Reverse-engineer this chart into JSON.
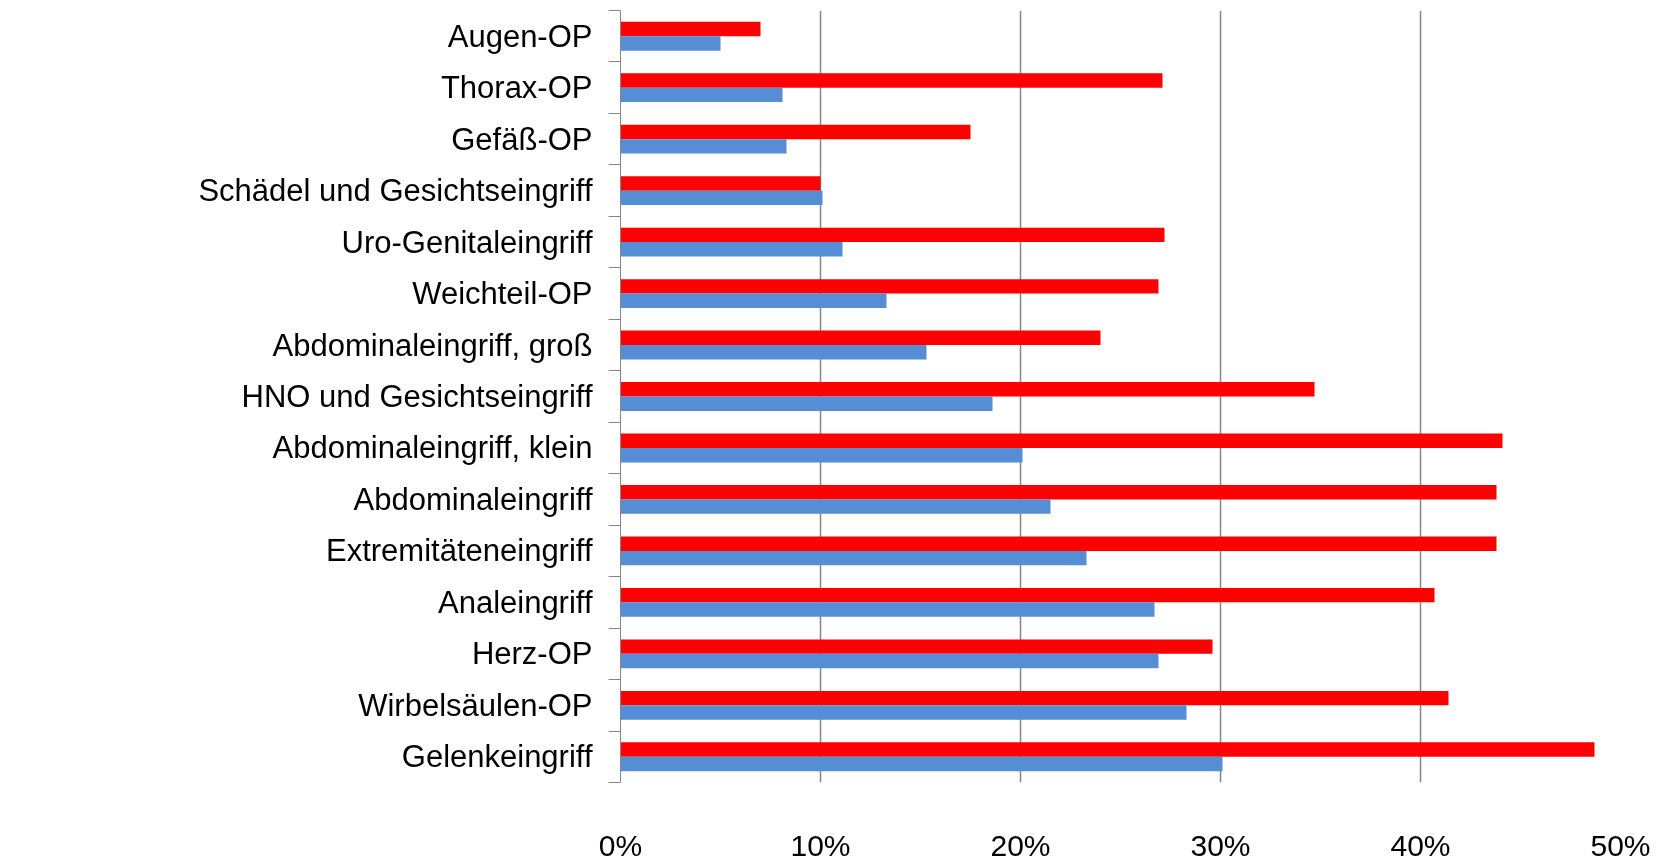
{
  "chart_data": {
    "type": "bar",
    "orientation": "horizontal",
    "categories": [
      "Augen-OP",
      "Thorax-OP",
      "Gefäß-OP",
      "Schädel und Gesichtseingriff",
      "Uro-Genitaleingriff",
      "Weichteil-OP",
      "Abdominaleingriff, groß",
      "HNO und Gesichtseingriff",
      "Abdominaleingriff, klein",
      "Abdominaleingriff",
      "Extremitäteneingriff",
      "Analeingriff",
      "Herz-OP",
      "Wirbelsäulen-OP",
      "Gelenkeingriff"
    ],
    "series": [
      {
        "color": "#ff0000",
        "values": [
          7.0,
          27.1,
          17.5,
          10.0,
          27.2,
          26.9,
          24.0,
          34.7,
          44.1,
          43.8,
          43.8,
          40.7,
          29.6,
          41.4,
          48.7
        ]
      },
      {
        "color": "#558ed5",
        "values": [
          5.0,
          8.1,
          8.3,
          10.1,
          11.1,
          13.3,
          15.3,
          18.6,
          20.1,
          21.5,
          23.3,
          26.7,
          26.9,
          28.3,
          30.1
        ]
      }
    ],
    "xlim": [
      0,
      50
    ],
    "xticks": [
      {
        "value": 0,
        "label": "0%"
      },
      {
        "value": 10,
        "label": "10%"
      },
      {
        "value": 20,
        "label": "20%"
      },
      {
        "value": 30,
        "label": "30%"
      },
      {
        "value": 40,
        "label": "40%"
      },
      {
        "value": 50,
        "label": "50%"
      }
    ],
    "grid": "x"
  }
}
